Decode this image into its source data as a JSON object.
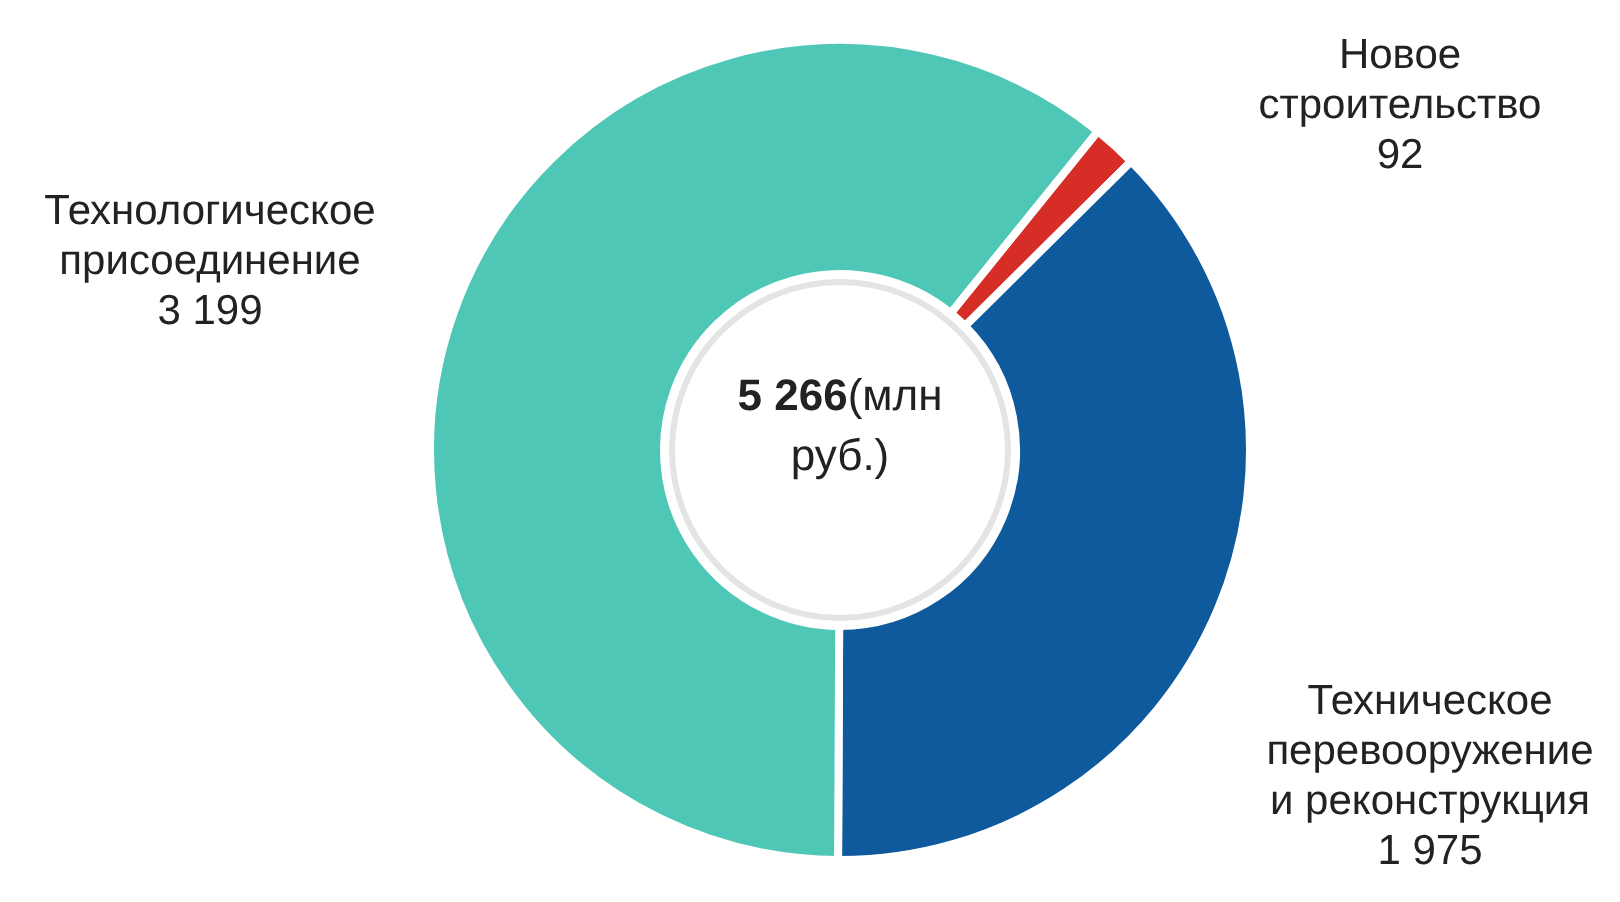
{
  "chart_data": {
    "type": "donut",
    "categories": [
      "Новое строительство",
      "Техническое перевооружение и реконструкция",
      "Технологическое присоединение"
    ],
    "values": [
      92,
      1975,
      3199
    ],
    "colors": [
      "#d62d27",
      "#0e5a9c",
      "#4fc7b7"
    ],
    "value_labels": [
      "92",
      "1 975",
      "3 199"
    ],
    "annotations": [
      "5 266",
      "(млн руб.)"
    ]
  }
}
